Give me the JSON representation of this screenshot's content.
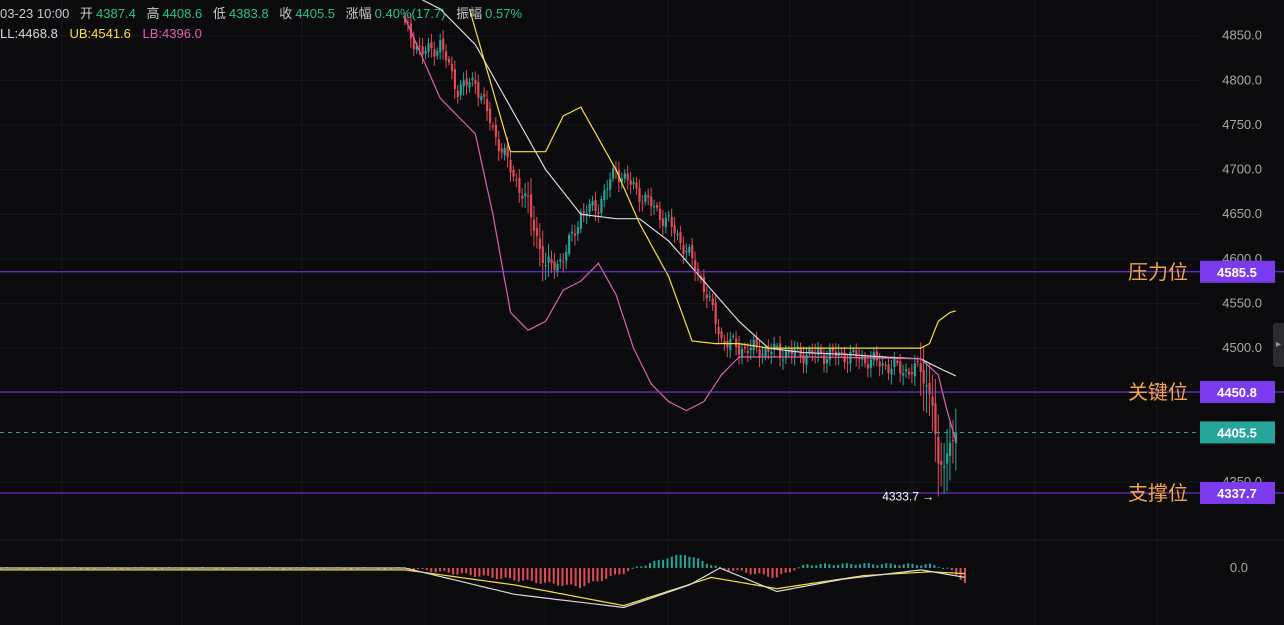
{
  "info": {
    "date": "03-23 10:00",
    "open_label": "开",
    "open": "4387.4",
    "high_label": "高",
    "high": "4408.6",
    "low_label": "低",
    "low": "4383.8",
    "close_label": "收",
    "close": "4405.5",
    "change_label": "涨幅",
    "change": "0.40%(17.7)",
    "amplitude_label": "振幅",
    "amplitude": "0.57%"
  },
  "boll": {
    "mid": "LL:4468.8",
    "upper": "UB:4541.6",
    "lower": "LB:4396.0"
  },
  "colors": {
    "background": "#0b0b0e",
    "up": "#26a69a",
    "down": "#e04b55",
    "mid_band": "#d8d8d8",
    "upper_band": "#f5e13a",
    "lower_band": "#e05fb4",
    "level_line": "#7c3aed",
    "price_tag": "#26a69a",
    "level_text": "#f5a24a"
  },
  "chart_data": {
    "type": "candlestick",
    "y_axis": {
      "ticks": [
        4350.0,
        4400.0,
        4450.0,
        4500.0,
        4550.0,
        4600.0,
        4650.0,
        4700.0,
        4750.0,
        4800.0,
        4850.0
      ],
      "tick_labels": [
        "4350.0",
        "4400.0",
        "4450.0",
        "4500.0",
        "4550.0",
        "4600.0",
        "4650.0",
        "4700.0",
        "4750.0",
        "4800.0",
        "4850.0"
      ],
      "range": [
        4285,
        4890
      ],
      "side": "right"
    },
    "levels": [
      {
        "label": "压力位",
        "value": 4585.5,
        "tag": "4585.5"
      },
      {
        "label": "关键位",
        "value": 4450.8,
        "tag": "4450.8"
      },
      {
        "label": "支撑位",
        "value": 4337.7,
        "tag": "4337.7"
      }
    ],
    "current_price": {
      "value": 4405.5,
      "tag": "4405.5"
    },
    "low_marker": {
      "value": 4333.7,
      "label": "4333.7 →"
    },
    "anchors": {
      "close": [
        [
          0,
          4860
        ],
        [
          6,
          4830
        ],
        [
          12,
          4840
        ],
        [
          18,
          4790
        ],
        [
          24,
          4800
        ],
        [
          30,
          4745
        ],
        [
          36,
          4700
        ],
        [
          42,
          4660
        ],
        [
          48,
          4590
        ],
        [
          54,
          4600
        ],
        [
          60,
          4650
        ],
        [
          66,
          4660
        ],
        [
          72,
          4700
        ],
        [
          78,
          4680
        ],
        [
          84,
          4660
        ],
        [
          90,
          4640
        ],
        [
          96,
          4610
        ],
        [
          102,
          4570
        ],
        [
          108,
          4510
        ],
        [
          114,
          4500
        ],
        [
          122,
          4498
        ],
        [
          134,
          4494
        ],
        [
          150,
          4492
        ],
        [
          160,
          4485
        ],
        [
          170,
          4475
        ],
        [
          176,
          4476
        ],
        [
          180,
          4440
        ],
        [
          182,
          4360
        ],
        [
          185,
          4385
        ],
        [
          188,
          4405.5
        ]
      ],
      "mid": [
        [
          0,
          4900
        ],
        [
          12,
          4880
        ],
        [
          24,
          4840
        ],
        [
          36,
          4770
        ],
        [
          48,
          4700
        ],
        [
          60,
          4650
        ],
        [
          72,
          4645
        ],
        [
          80,
          4645
        ],
        [
          90,
          4620
        ],
        [
          102,
          4575
        ],
        [
          114,
          4530
        ],
        [
          124,
          4500
        ],
        [
          136,
          4495
        ],
        [
          150,
          4493
        ],
        [
          164,
          4490
        ],
        [
          176,
          4488
        ],
        [
          182,
          4478
        ],
        [
          188,
          4468.8
        ]
      ],
      "upper": [
        [
          22,
          4880
        ],
        [
          36,
          4720
        ],
        [
          42,
          4720
        ],
        [
          48,
          4720
        ],
        [
          54,
          4760
        ],
        [
          60,
          4770
        ],
        [
          72,
          4700
        ],
        [
          80,
          4640
        ],
        [
          90,
          4580
        ],
        [
          98,
          4508
        ],
        [
          106,
          4505
        ],
        [
          114,
          4505
        ],
        [
          124,
          4500
        ],
        [
          140,
          4500
        ],
        [
          160,
          4500
        ],
        [
          176,
          4500
        ],
        [
          179,
          4505
        ],
        [
          182,
          4530
        ],
        [
          186,
          4540
        ],
        [
          188,
          4541.6
        ]
      ],
      "lower": [
        [
          0,
          4870
        ],
        [
          12,
          4780
        ],
        [
          18,
          4760
        ],
        [
          24,
          4740
        ],
        [
          30,
          4650
        ],
        [
          36,
          4540
        ],
        [
          42,
          4520
        ],
        [
          48,
          4530
        ],
        [
          54,
          4565
        ],
        [
          60,
          4575
        ],
        [
          66,
          4595
        ],
        [
          72,
          4560
        ],
        [
          78,
          4500
        ],
        [
          84,
          4460
        ],
        [
          90,
          4440
        ],
        [
          96,
          4430
        ],
        [
          102,
          4440
        ],
        [
          108,
          4470
        ],
        [
          114,
          4490
        ],
        [
          124,
          4490
        ],
        [
          140,
          4490
        ],
        [
          160,
          4489
        ],
        [
          176,
          4488
        ],
        [
          182,
          4470
        ],
        [
          185,
          4430
        ],
        [
          188,
          4396.0
        ]
      ]
    },
    "candle_count": 189,
    "macd": {
      "zero_tick": "0.0",
      "hist_anchors": [
        [
          0,
          0
        ],
        [
          60,
          0
        ],
        [
          80,
          -10
        ],
        [
          100,
          -20
        ],
        [
          110,
          -5
        ],
        [
          120,
          15
        ],
        [
          124,
          20
        ],
        [
          132,
          0
        ],
        [
          145,
          -10
        ],
        [
          152,
          5
        ],
        [
          165,
          6
        ],
        [
          180,
          5
        ],
        [
          184,
          0
        ],
        [
          188,
          -15
        ]
      ],
      "dif_anchors": [
        [
          0,
          0
        ],
        [
          60,
          0
        ],
        [
          85,
          -28
        ],
        [
          110,
          -42
        ],
        [
          125,
          -18
        ],
        [
          132,
          0
        ],
        [
          145,
          -25
        ],
        [
          160,
          -12
        ],
        [
          178,
          -2
        ],
        [
          188,
          -10
        ]
      ],
      "dea_anchors": [
        [
          0,
          -2
        ],
        [
          60,
          -2
        ],
        [
          85,
          -18
        ],
        [
          110,
          -40
        ],
        [
          130,
          -10
        ],
        [
          145,
          -22
        ],
        [
          165,
          -8
        ],
        [
          180,
          -4
        ],
        [
          188,
          -6
        ]
      ],
      "range": [
        -50,
        35
      ]
    }
  }
}
